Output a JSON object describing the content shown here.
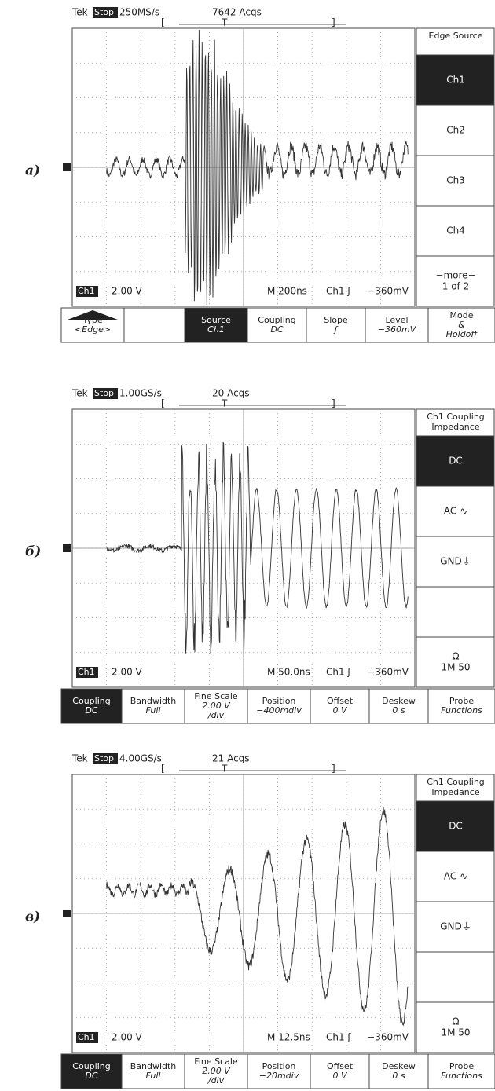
{
  "panels": [
    {
      "label": "а)",
      "header": {
        "brand": "Tek",
        "status": "Stop",
        "rate": "250MS/s",
        "acqs": "7642 Acqs",
        "bracket_left": "[",
        "trigger": "T",
        "bracket_right": "]"
      },
      "readout": {
        "channel": "Ch1",
        "volts": "2.00 V",
        "timebase": "M  200ns",
        "trigger_source": "Ch1 ʃ",
        "trigger_level": "−360mV"
      },
      "side_menu": {
        "title": [
          "Edge Source"
        ],
        "items": [
          {
            "lines": [
              "Ch1"
            ],
            "selected": true
          },
          {
            "lines": [
              "Ch2"
            ],
            "selected": false
          },
          {
            "lines": [
              "Ch3"
            ],
            "selected": false
          },
          {
            "lines": [
              "Ch4"
            ],
            "selected": false
          },
          {
            "lines": [
              "−more−",
              "1 of 2"
            ],
            "selected": false
          }
        ]
      },
      "bottom_menu": [
        {
          "lines": [
            "Type",
            "<Edge>"
          ],
          "selected": false
        },
        {
          "lines": [],
          "selected": false
        },
        {
          "lines": [
            "Source",
            "Ch1"
          ],
          "selected": true
        },
        {
          "lines": [
            "Coupling",
            "DC"
          ],
          "selected": false
        },
        {
          "lines": [
            "Slope",
            "ʃ"
          ],
          "selected": false
        },
        {
          "lines": [
            "Level",
            "−360mV"
          ],
          "selected": false
        },
        {
          "lines": [
            "Mode",
            "&",
            "Holdoff"
          ],
          "selected": false
        }
      ]
    },
    {
      "label": "б)",
      "header": {
        "brand": "Tek",
        "status": "Stop",
        "rate": "1.00GS/s",
        "acqs": "20 Acqs",
        "bracket_left": "[",
        "trigger": "T",
        "bracket_right": "]"
      },
      "readout": {
        "channel": "Ch1",
        "volts": "2.00 V",
        "timebase": "M 50.0ns",
        "trigger_source": "Ch1 ʃ",
        "trigger_level": "−360mV"
      },
      "side_menu": {
        "title": [
          "Ch1 Coupling",
          "Impedance"
        ],
        "items": [
          {
            "lines": [
              "DC"
            ],
            "selected": true
          },
          {
            "lines": [
              "AC ∿"
            ],
            "selected": false
          },
          {
            "lines": [
              "GND⏚"
            ],
            "selected": false
          },
          {
            "lines": [],
            "selected": false
          },
          {
            "lines": [
              "Ω",
              "1M 50"
            ],
            "selected": false
          }
        ]
      },
      "bottom_menu": [
        {
          "lines": [
            "Coupling",
            "DC"
          ],
          "selected": true
        },
        {
          "lines": [
            "Bandwidth",
            "Full"
          ],
          "selected": false
        },
        {
          "lines": [
            "Fine Scale",
            "2.00 V",
            "/div"
          ],
          "selected": false
        },
        {
          "lines": [
            "Position",
            "−400mdiv"
          ],
          "selected": false
        },
        {
          "lines": [
            "Offset",
            "0 V"
          ],
          "selected": false
        },
        {
          "lines": [
            "Deskew",
            "0 s"
          ],
          "selected": false
        },
        {
          "lines": [
            "Probe",
            "Functions"
          ],
          "selected": false
        }
      ]
    },
    {
      "label": "в)",
      "header": {
        "brand": "Tek",
        "status": "Stop",
        "rate": "4.00GS/s",
        "acqs": "21 Acqs",
        "bracket_left": "[",
        "trigger": "T",
        "bracket_right": "]"
      },
      "readout": {
        "channel": "Ch1",
        "volts": "2.00 V",
        "timebase": "M 12.5ns",
        "trigger_source": "Ch1 ʃ",
        "trigger_level": "−360mV"
      },
      "side_menu": {
        "title": [
          "Ch1 Coupling",
          "Impedance"
        ],
        "items": [
          {
            "lines": [
              "DC"
            ],
            "selected": true
          },
          {
            "lines": [
              "AC ∿"
            ],
            "selected": false
          },
          {
            "lines": [
              "GND⏚"
            ],
            "selected": false
          },
          {
            "lines": [],
            "selected": false
          },
          {
            "lines": [
              "Ω",
              "1M 50"
            ],
            "selected": false
          }
        ]
      },
      "bottom_menu": [
        {
          "lines": [
            "Coupling",
            "DC"
          ],
          "selected": true
        },
        {
          "lines": [
            "Bandwidth",
            "Full"
          ],
          "selected": false
        },
        {
          "lines": [
            "Fine Scale",
            "2.00 V",
            "/div"
          ],
          "selected": false
        },
        {
          "lines": [
            "Position",
            "−20mdiv"
          ],
          "selected": false
        },
        {
          "lines": [
            "Offset",
            "0 V"
          ],
          "selected": false
        },
        {
          "lines": [
            "Deskew",
            "0 s"
          ],
          "selected": false
        },
        {
          "lines": [
            "Probe",
            "Functions"
          ],
          "selected": false
        }
      ]
    }
  ]
}
